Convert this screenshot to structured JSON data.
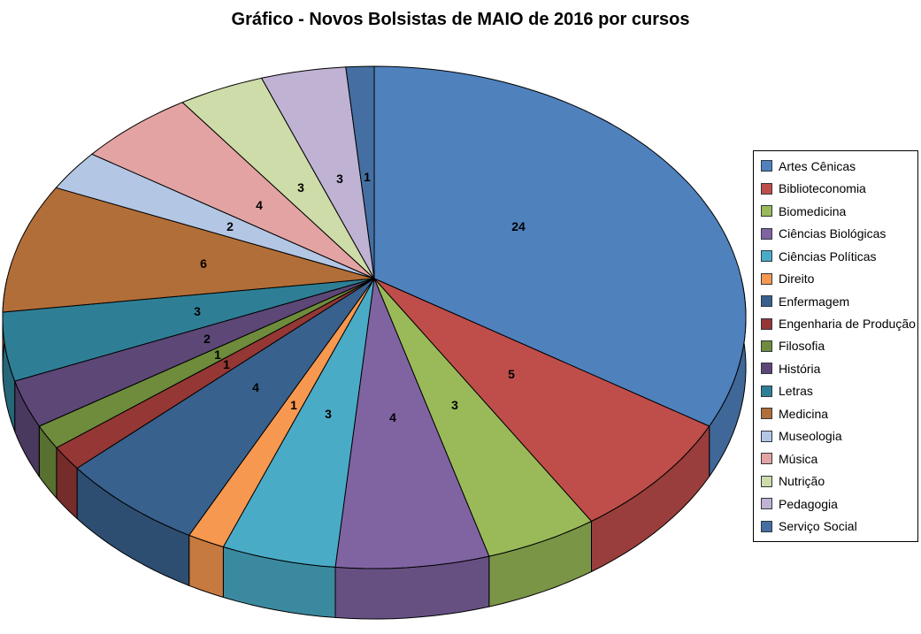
{
  "title": "Gráfico - Novos Bolsistas de MAIO de 2016 por cursos",
  "chart_data": {
    "type": "pie",
    "style": "3d",
    "title": "Gráfico - Novos Bolsistas de MAIO de 2016 por cursos",
    "legend_position": "right",
    "direction": "clockwise",
    "start_angle_deg": 0,
    "data_labels": "values",
    "total": 70,
    "categories": [
      "Artes Cênicas",
      "Biblioteconomia",
      "Biomedicina",
      "Ciências Biológicas",
      "Ciências Políticas",
      "Direito",
      "Enfermagem",
      "Engenharia de Produção",
      "Filosofia",
      "História",
      "Letras",
      "Medicina",
      "Museologia",
      "Música",
      "Nutrição",
      "Pedagogia",
      "Serviço Social"
    ],
    "values": [
      24,
      5,
      3,
      4,
      3,
      1,
      4,
      1,
      1,
      2,
      3,
      6,
      2,
      4,
      3,
      3,
      1
    ],
    "colors": [
      "#4F81BD",
      "#BF4E4B",
      "#9ABA59",
      "#8064A2",
      "#4AABC7",
      "#F79850",
      "#38618D",
      "#943735",
      "#6E8C3C",
      "#5C4776",
      "#2E7F96",
      "#B26E38",
      "#B3C6E4",
      "#E4A3A3",
      "#CDDCA8",
      "#BFB2D3",
      "#456FA3"
    ],
    "outline_color": "#000000",
    "background_color": "#FFFFFF"
  }
}
